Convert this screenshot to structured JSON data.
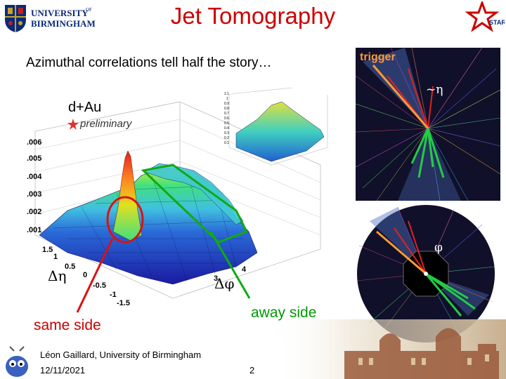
{
  "header": {
    "title": "Jet Tomography",
    "university_line1": "UNIVERSITY",
    "university_of": "OF",
    "university_line2": "BIRMINGHAM",
    "star_logo_text": "STAR"
  },
  "subtitle": "Azimuthal correlations tell half the story…",
  "plot": {
    "dataset_label": "d+Au",
    "preliminary_label": "preliminary",
    "z_ticks": [
      ".006",
      ".005",
      ".004",
      ".003",
      ".002",
      ".001"
    ],
    "deta_ticks": [
      "1.5",
      "1",
      "0.5",
      "0",
      "-0.5",
      "-1",
      "-1.5"
    ],
    "dphi_ticks": [
      "3",
      "4"
    ],
    "deta_axis_label": "Δη",
    "dphi_axis_label": "Δφ",
    "inset_ticks": [
      "1.1",
      "1",
      "0.9",
      "0.8",
      "0.7",
      "0.6",
      "0.5",
      "0.4",
      "0.3",
      "0.2",
      "0.1"
    ]
  },
  "annotations": {
    "away_side": "away side",
    "same_side": "same side"
  },
  "event_display": {
    "trigger_label": "trigger",
    "eta_label": "~η",
    "phi_label": "φ"
  },
  "footer": {
    "author": "Léon Gaillard, University of Birmingham",
    "date": "12/11/2021",
    "page": "2"
  },
  "colors": {
    "title": "#cc0000",
    "away_side": "#009900",
    "same_side": "#cc0000",
    "trigger": "#ff9933"
  }
}
